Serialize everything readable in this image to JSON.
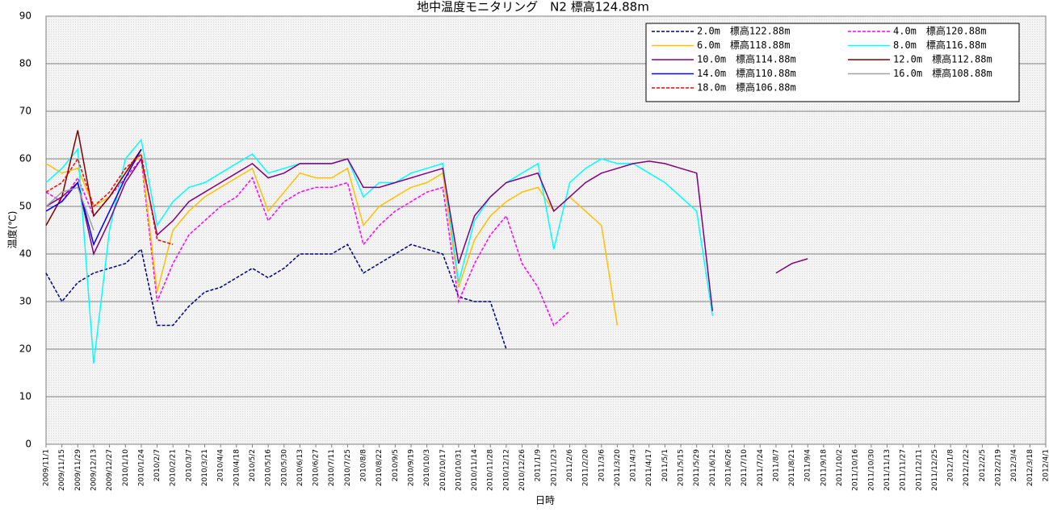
{
  "chart_data": {
    "type": "line",
    "title": "地中温度モニタリング　N2 標高124.88m",
    "x_label": "日時",
    "y_label": "温度(℃)",
    "categories": [
      "2009/11/1",
      "2009/11/15",
      "2009/11/29",
      "2009/12/13",
      "2009/12/27",
      "2010/1/10",
      "2010/1/24",
      "2010/2/7",
      "2010/2/21",
      "2010/3/7",
      "2010/3/21",
      "2010/4/4",
      "2010/4/18",
      "2010/5/2",
      "2010/5/16",
      "2010/5/30",
      "2010/6/13",
      "2010/6/27",
      "2010/7/11",
      "2010/7/25",
      "2010/8/8",
      "2010/8/22",
      "2010/9/5",
      "2010/9/19",
      "2010/10/3",
      "2010/10/17",
      "2010/10/31",
      "2010/11/14",
      "2010/11/28",
      "2010/12/12",
      "2010/12/26",
      "2011/1/9",
      "2011/1/23",
      "2011/2/6",
      "2011/2/20",
      "2011/3/6",
      "2011/3/20",
      "2011/4/3",
      "2011/4/17",
      "2011/5/1",
      "2011/5/15",
      "2011/5/29",
      "2011/6/12",
      "2011/6/26",
      "2011/7/10",
      "2011/7/24",
      "2011/8/7",
      "2011/8/21",
      "2011/9/4",
      "2011/9/18",
      "2011/10/2",
      "2011/10/16",
      "2011/10/30",
      "2011/11/13",
      "2011/11/27",
      "2011/12/11",
      "2011/12/25",
      "2012/1/8",
      "2012/1/22",
      "2012/2/5",
      "2012/2/19",
      "2012/3/4",
      "2012/3/18",
      "2012/4/1"
    ],
    "ylim": [
      0,
      90
    ],
    "yticks": [
      0,
      10,
      20,
      30,
      40,
      50,
      60,
      70,
      80,
      90
    ],
    "grid": true,
    "series": [
      {
        "name": "2.0m　標高122.88m",
        "color": "#000080",
        "dashed": true,
        "values": [
          36,
          30,
          34,
          36,
          37,
          38,
          41,
          25,
          25,
          29,
          32,
          33,
          35,
          37,
          35,
          37,
          40,
          40,
          40,
          42,
          36,
          38,
          40,
          42,
          41,
          40,
          31,
          30,
          30,
          20,
          null,
          null,
          null,
          null,
          null,
          null,
          null,
          null,
          null,
          null,
          null,
          null,
          null,
          null,
          null,
          null,
          null,
          null,
          null,
          null,
          null,
          null,
          null,
          null,
          null,
          null,
          null,
          null,
          null,
          null,
          null,
          null,
          null,
          null
        ]
      },
      {
        "name": "4.0m　標高120.88m",
        "color": "#ff00ff",
        "dashed": true,
        "values": [
          53,
          51,
          56,
          48,
          52,
          56,
          60,
          30,
          38,
          44,
          47,
          50,
          52,
          56,
          47,
          51,
          53,
          54,
          54,
          55,
          42,
          46,
          49,
          51,
          53,
          54,
          30,
          38,
          44,
          48,
          38,
          33,
          25,
          28,
          null,
          null,
          null,
          null,
          null,
          null,
          null,
          null,
          null,
          null,
          null,
          null,
          null,
          null,
          null,
          null,
          null,
          null,
          null,
          null,
          null,
          null,
          null,
          null,
          null,
          null,
          null,
          null,
          null,
          null
        ]
      },
      {
        "name": "6.0m　標高118.88m",
        "color": "#ffc000",
        "dashed": false,
        "values": [
          59,
          57,
          58,
          50,
          52,
          57,
          61,
          32,
          45,
          49,
          52,
          54,
          56,
          58,
          49,
          53,
          57,
          56,
          56,
          58,
          46,
          50,
          52,
          54,
          55,
          57,
          33,
          43,
          48,
          51,
          53,
          54,
          49,
          52,
          49,
          46,
          25,
          null,
          null,
          null,
          null,
          null,
          null,
          null,
          null,
          null,
          null,
          null,
          null,
          null,
          null,
          null,
          null,
          null,
          null,
          null,
          null,
          null,
          null,
          null,
          null,
          null,
          null,
          null
        ]
      },
      {
        "name": "8.0m　標高116.88m",
        "color": "#00ffff",
        "dashed": false,
        "values": [
          55,
          58,
          62,
          17,
          45,
          60,
          64,
          46,
          51,
          54,
          55,
          57,
          59,
          61,
          57,
          58,
          59,
          59,
          59,
          60,
          52,
          55,
          55,
          57,
          58,
          59,
          34,
          47,
          52,
          55,
          57,
          59,
          41,
          55,
          58,
          60,
          59,
          59,
          57,
          55,
          52,
          49,
          27,
          null,
          null,
          null,
          null,
          null,
          null,
          null,
          null,
          null,
          null,
          null,
          null,
          null,
          null,
          null,
          null,
          null,
          null,
          null,
          null,
          null
        ]
      },
      {
        "name": "10.0m　標高114.88m",
        "color": "#800080",
        "dashed": false,
        "values": [
          50,
          52,
          55,
          40,
          47,
          55,
          60,
          44,
          47,
          51,
          53,
          55,
          57,
          59,
          56,
          57,
          59,
          59,
          59,
          60,
          54,
          54,
          55,
          56,
          57,
          58,
          38,
          48,
          52,
          55,
          56,
          57,
          49,
          52,
          55,
          57,
          58,
          59,
          59.5,
          59,
          58,
          57,
          28,
          null,
          null,
          null,
          36,
          38,
          39,
          null,
          null,
          null,
          null,
          null,
          null,
          null,
          null,
          null,
          null,
          null,
          null,
          null,
          null,
          null
        ]
      },
      {
        "name": "12.0m　標高112.88m",
        "color": "#800000",
        "dashed": false,
        "values": [
          46,
          52,
          66,
          48,
          52,
          57,
          62,
          null,
          null,
          null,
          null,
          null,
          null,
          null,
          null,
          null,
          null,
          null,
          null,
          null,
          null,
          null,
          null,
          null,
          null,
          null,
          null,
          null,
          null,
          null,
          null,
          null,
          null,
          null,
          null,
          null,
          null,
          null,
          null,
          null,
          null,
          null,
          null,
          null,
          null,
          null,
          null,
          null,
          null,
          null,
          null,
          null,
          null,
          null,
          null,
          null,
          null,
          null,
          null,
          null,
          null,
          null,
          null,
          null
        ]
      },
      {
        "name": "14.0m　標高110.88m",
        "color": "#0000ff",
        "dashed": false,
        "values": [
          49,
          51,
          55,
          42,
          49,
          56,
          62,
          null,
          null,
          null,
          null,
          null,
          null,
          null,
          null,
          null,
          null,
          null,
          null,
          null,
          null,
          null,
          null,
          null,
          null,
          null,
          null,
          null,
          null,
          null,
          null,
          null,
          null,
          null,
          null,
          null,
          null,
          null,
          null,
          null,
          null,
          null,
          null,
          null,
          null,
          null,
          null,
          null,
          null,
          null,
          null,
          null,
          null,
          null,
          null,
          null,
          null,
          null,
          null,
          null,
          null,
          null,
          null,
          null
        ]
      },
      {
        "name": "16.0m　標高108.88m",
        "color": "#a0a0a0",
        "dashed": false,
        "values": [
          50,
          53,
          54,
          45,
          null,
          null,
          null,
          null,
          null,
          null,
          null,
          null,
          null,
          null,
          null,
          null,
          null,
          null,
          null,
          null,
          null,
          null,
          null,
          null,
          null,
          null,
          null,
          null,
          null,
          null,
          null,
          null,
          null,
          null,
          null,
          null,
          null,
          null,
          null,
          null,
          null,
          null,
          null,
          null,
          null,
          null,
          null,
          null,
          null,
          null,
          null,
          null,
          null,
          null,
          null,
          null,
          null,
          null,
          null,
          null,
          null,
          null,
          null,
          null
        ]
      },
      {
        "name": "18.0m　標高106.88m",
        "color": "#ff0000",
        "dashed": true,
        "values": [
          53,
          55,
          60,
          50,
          53,
          58,
          61,
          43,
          42,
          null,
          null,
          null,
          null,
          null,
          null,
          null,
          null,
          null,
          null,
          null,
          null,
          null,
          null,
          null,
          null,
          null,
          null,
          null,
          null,
          null,
          null,
          null,
          null,
          null,
          null,
          null,
          null,
          null,
          null,
          null,
          null,
          null,
          null,
          null,
          null,
          null,
          null,
          null,
          null,
          null,
          null,
          null,
          null,
          null,
          null,
          null,
          null,
          null,
          null,
          null,
          null,
          null,
          null,
          null
        ]
      }
    ]
  }
}
